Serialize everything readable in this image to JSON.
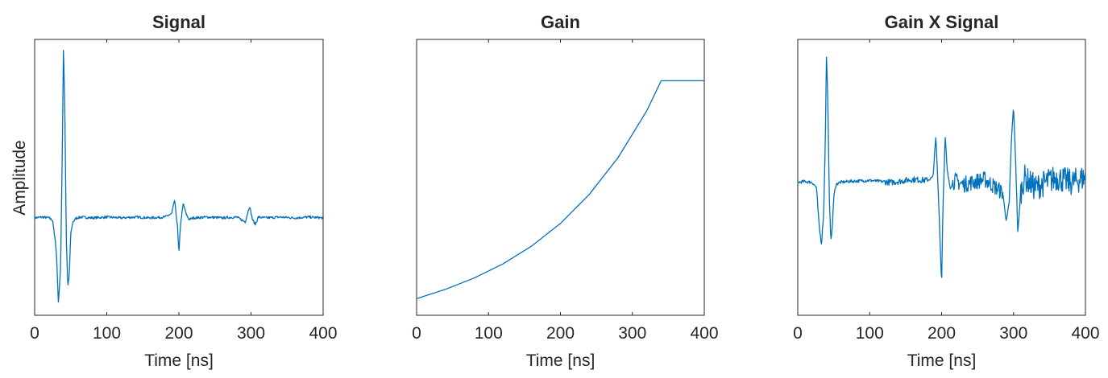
{
  "figure": {
    "ylabel": "Amplitude",
    "line_color": "#0072BD",
    "axis_color": "#262626"
  },
  "chart_data": [
    {
      "type": "line",
      "title": "Signal",
      "xlabel": "Time [ns]",
      "ylabel": "Amplitude",
      "xlim": [
        0,
        400
      ],
      "ylim": [
        -1.2,
        2.2
      ],
      "xticks": [
        0,
        100,
        200,
        300,
        400
      ],
      "yticks_visible": false,
      "grid": false,
      "series": [
        {
          "x": [
            0,
            10,
            20,
            25,
            30,
            33,
            36,
            38,
            40,
            42,
            44,
            46,
            48,
            50,
            53,
            58,
            65,
            80,
            100,
            120,
            140,
            160,
            180,
            190,
            194,
            198,
            200,
            202,
            206,
            210,
            214,
            220,
            240,
            260,
            280,
            292,
            298,
            302,
            306,
            310,
            320,
            340,
            360,
            380,
            400
          ],
          "y": [
            0,
            0.01,
            0,
            -0.03,
            -0.4,
            -1.05,
            -0.6,
            0.6,
            2.15,
            1.2,
            -0.3,
            -0.85,
            -0.7,
            -0.2,
            -0.05,
            0,
            0.01,
            0,
            0.01,
            0,
            0.01,
            0,
            0.01,
            0.05,
            0.22,
            -0.1,
            -0.45,
            -0.1,
            0.18,
            0.05,
            -0.02,
            0,
            0.01,
            0,
            0.01,
            -0.05,
            0.15,
            -0.02,
            -0.08,
            0.01,
            0,
            0.01,
            0,
            0.01,
            0
          ]
        }
      ]
    },
    {
      "type": "line",
      "title": "Gain",
      "xlabel": "Time [ns]",
      "ylabel": "",
      "xlim": [
        0,
        400
      ],
      "ylim": [
        0,
        1
      ],
      "xticks": [
        0,
        100,
        200,
        300,
        400
      ],
      "yticks_visible": false,
      "grid": false,
      "series": [
        {
          "x": [
            0,
            40,
            80,
            120,
            160,
            200,
            240,
            280,
            320,
            340,
            400
          ],
          "y": [
            0.06,
            0.094,
            0.135,
            0.186,
            0.251,
            0.333,
            0.438,
            0.571,
            0.741,
            0.85,
            0.85
          ]
        }
      ]
    },
    {
      "type": "line",
      "title": "Gain X Signal",
      "xlabel": "Time [ns]",
      "ylabel": "",
      "xlim": [
        0,
        400
      ],
      "ylim": [
        -1.3,
        1.4
      ],
      "xticks": [
        0,
        100,
        200,
        300,
        400
      ],
      "yticks_visible": false,
      "grid": false,
      "series": [
        {
          "x": [
            0,
            10,
            20,
            26,
            30,
            33,
            36,
            38,
            40,
            42,
            44,
            46,
            48,
            50,
            53,
            58,
            70,
            100,
            130,
            160,
            180,
            188,
            192,
            196,
            200,
            202,
            205,
            208,
            212,
            218,
            230,
            260,
            285,
            290,
            294,
            297,
            300,
            303,
            306,
            310,
            315,
            330,
            360,
            380,
            400
          ],
          "y": [
            0,
            0.01,
            0,
            -0.05,
            -0.45,
            -0.6,
            -0.3,
            0.3,
            1.28,
            0.7,
            -0.2,
            -0.55,
            -0.45,
            -0.15,
            -0.02,
            0,
            0.01,
            0.02,
            0,
            0.03,
            0.02,
            0.05,
            0.45,
            -0.2,
            -1.0,
            -0.2,
            0.45,
            0.1,
            -0.05,
            0.02,
            -0.02,
            0.03,
            -0.1,
            -0.38,
            -0.2,
            0.4,
            0.75,
            0.2,
            -0.5,
            -0.1,
            0.05,
            -0.05,
            0.05,
            0.0,
            0.05
          ]
        }
      ]
    }
  ]
}
